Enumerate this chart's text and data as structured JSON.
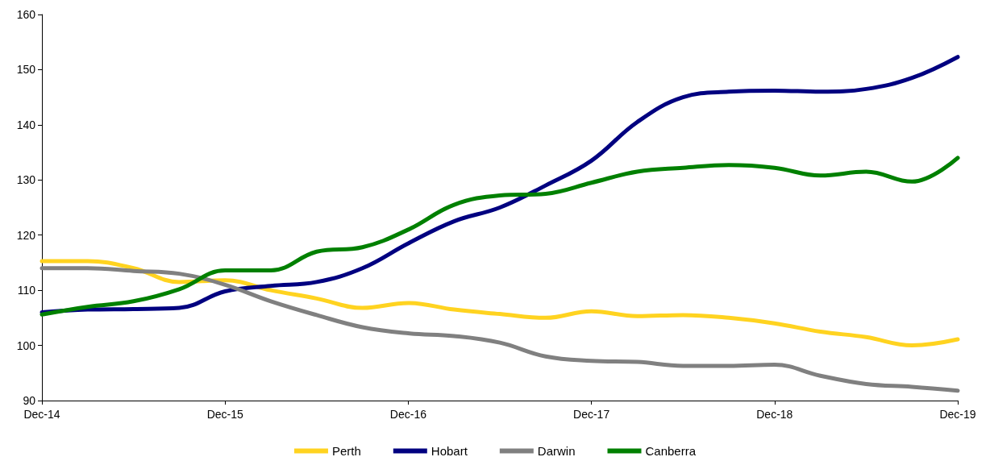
{
  "chart_data": {
    "type": "line",
    "categories": [
      "Dec-14",
      null,
      null,
      null,
      "Dec-15",
      null,
      null,
      null,
      "Dec-16",
      null,
      null,
      null,
      "Dec-17",
      null,
      null,
      null,
      "Dec-18",
      null,
      null,
      null,
      "Dec-19"
    ],
    "ylim": [
      90,
      160
    ],
    "yticks": [
      90,
      100,
      110,
      120,
      130,
      140,
      150,
      160
    ],
    "grid": false,
    "legend": "bottom",
    "marker": "none",
    "line_style": "solid",
    "series": [
      {
        "name": "Perth",
        "color": "#ffd320",
        "values": [
          115.3,
          115.3,
          114,
          111.5,
          111.8,
          110,
          108.5,
          106.8,
          107.7,
          106.5,
          105.7,
          105,
          106.2,
          105.3,
          105.5,
          105,
          104,
          102.5,
          101.5,
          100,
          101.1
        ]
      },
      {
        "name": "Hobart",
        "color": "#000080",
        "values": [
          106,
          106.5,
          106.6,
          106.8,
          109.8,
          110.8,
          111.5,
          114,
          118.5,
          122.5,
          125,
          129,
          133.5,
          140.5,
          145,
          146,
          146.2,
          146,
          146.5,
          148.5,
          152.3
        ]
      },
      {
        "name": "Darwin",
        "color": "#808080",
        "values": [
          114,
          114,
          113.5,
          113,
          111,
          108,
          105.5,
          103.3,
          102.2,
          101.7,
          100.5,
          98,
          97.2,
          97,
          96.3,
          96.3,
          96.5,
          94.5,
          93,
          92.5,
          91.8
        ]
      },
      {
        "name": "Canberra",
        "color": "#008000",
        "values": [
          105.6,
          107,
          108,
          110.2,
          113.6,
          113.6,
          117,
          117.8,
          121,
          125.5,
          127.2,
          127.5,
          129.5,
          131.5,
          132.2,
          132.7,
          132.2,
          130.8,
          131.5,
          129.7,
          134
        ]
      }
    ]
  }
}
